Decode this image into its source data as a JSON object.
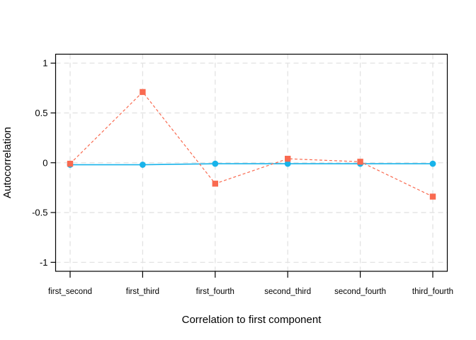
{
  "chart_data": {
    "type": "line",
    "title": "",
    "xlabel": "Correlation to first component",
    "ylabel": "Autocorrelation",
    "categories": [
      "first_second",
      "first_third",
      "first_fourth",
      "second_third",
      "second_fourth",
      "third_fourth"
    ],
    "series": [
      {
        "name": "cyan-circles-solid",
        "marker": "circle",
        "line_style": "solid",
        "color": "#18b3ea",
        "values": [
          -0.02,
          -0.02,
          -0.01,
          -0.01,
          -0.01,
          -0.01
        ]
      },
      {
        "name": "red-squares-dashed",
        "marker": "square",
        "line_style": "dashed",
        "color": "#f96a50",
        "values": [
          -0.01,
          0.71,
          -0.21,
          0.04,
          0.01,
          -0.34
        ]
      }
    ],
    "yticks": {
      "values": [
        -1,
        -0.5,
        0,
        0.5,
        1
      ],
      "labels": [
        "-1",
        "-0.5",
        "0",
        "0.5",
        "1"
      ]
    },
    "ylim": [
      -1.09,
      1.09
    ],
    "grid": "dashed",
    "legend": "none",
    "colors": {
      "grid": "#e2e2e2",
      "axis": "#000000",
      "text": "#000000",
      "background": "#ffffff"
    }
  }
}
